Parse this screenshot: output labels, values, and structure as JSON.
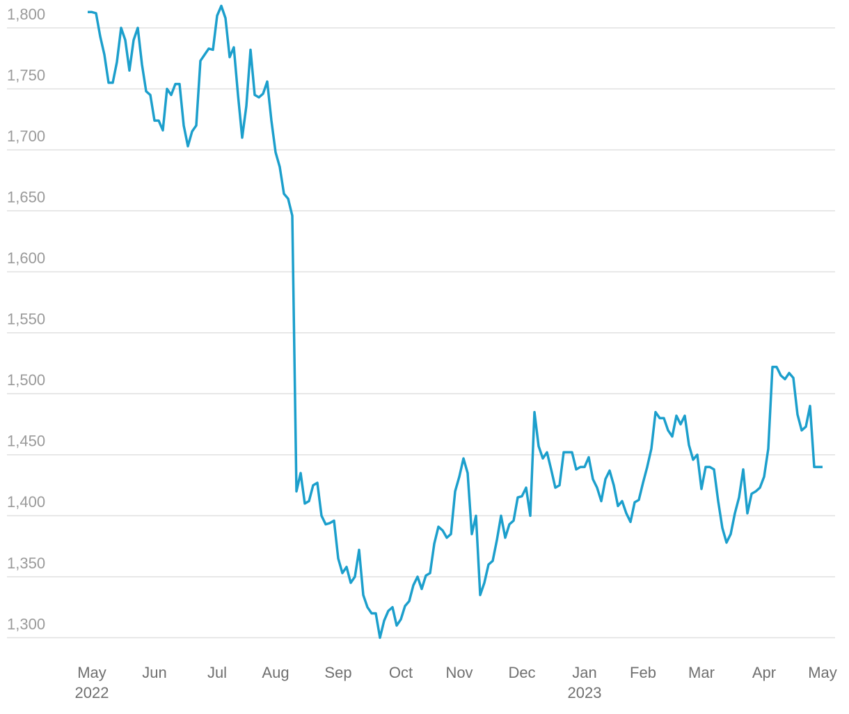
{
  "chart_data": {
    "type": "line",
    "color": "#1c9fcc",
    "grid": true,
    "ylim": [
      1290,
      1820
    ],
    "yticks": [
      {
        "value": 1300,
        "label": "1,300"
      },
      {
        "value": 1350,
        "label": "1,350"
      },
      {
        "value": 1400,
        "label": "1,400"
      },
      {
        "value": 1450,
        "label": "1,450"
      },
      {
        "value": 1500,
        "label": "1,500"
      },
      {
        "value": 1550,
        "label": "1,550"
      },
      {
        "value": 1600,
        "label": "1,600"
      },
      {
        "value": 1650,
        "label": "1,650"
      },
      {
        "value": 1700,
        "label": "1,700"
      },
      {
        "value": 1750,
        "label": "1,750"
      },
      {
        "value": 1800,
        "label": "1,800"
      }
    ],
    "categories": [
      null,
      "May",
      null,
      null,
      null,
      null,
      null,
      null,
      null,
      null,
      null,
      null,
      null,
      null,
      null,
      null,
      "Jun",
      null,
      null,
      null,
      null,
      null,
      null,
      null,
      null,
      null,
      null,
      null,
      null,
      null,
      null,
      "Jul",
      null,
      null,
      null,
      null,
      null,
      null,
      null,
      null,
      null,
      null,
      null,
      null,
      null,
      "Aug",
      null,
      null,
      null,
      null,
      null,
      null,
      null,
      null,
      null,
      null,
      null,
      null,
      null,
      null,
      "Sep",
      null,
      null,
      null,
      null,
      null,
      null,
      null,
      null,
      null,
      null,
      null,
      null,
      null,
      null,
      "Oct",
      null,
      null,
      null,
      null,
      null,
      null,
      null,
      null,
      null,
      null,
      null,
      null,
      null,
      "Nov",
      null,
      null,
      null,
      null,
      null,
      null,
      null,
      null,
      null,
      null,
      null,
      null,
      null,
      null,
      "Dec",
      null,
      null,
      null,
      null,
      null,
      null,
      null,
      null,
      null,
      null,
      null,
      null,
      null,
      null,
      "Jan",
      null,
      null,
      null,
      null,
      null,
      null,
      null,
      null,
      null,
      null,
      null,
      null,
      null,
      "Feb",
      null,
      null,
      null,
      null,
      null,
      null,
      null,
      null,
      null,
      null,
      null,
      null,
      null,
      "Mar",
      null,
      null,
      null,
      null,
      null,
      null,
      null,
      null,
      null,
      null,
      null,
      null,
      null,
      null,
      "Apr",
      null,
      null,
      null,
      null,
      null,
      null,
      null,
      null,
      null,
      null,
      null,
      null,
      null,
      "May"
    ],
    "category_years": [
      null,
      "2022",
      null,
      null,
      null,
      null,
      null,
      null,
      null,
      null,
      null,
      null,
      null,
      null,
      null,
      null,
      null,
      null,
      null,
      null,
      null,
      null,
      null,
      null,
      null,
      null,
      null,
      null,
      null,
      null,
      null,
      null,
      null,
      null,
      null,
      null,
      null,
      null,
      null,
      null,
      null,
      null,
      null,
      null,
      null,
      null,
      null,
      null,
      null,
      null,
      null,
      null,
      null,
      null,
      null,
      null,
      null,
      null,
      null,
      null,
      null,
      null,
      null,
      null,
      null,
      null,
      null,
      null,
      null,
      null,
      null,
      null,
      null,
      null,
      null,
      null,
      null,
      null,
      null,
      null,
      null,
      null,
      null,
      null,
      null,
      null,
      null,
      null,
      null,
      null,
      null,
      null,
      null,
      null,
      null,
      null,
      null,
      null,
      null,
      null,
      null,
      null,
      null,
      null,
      null,
      null,
      null,
      null,
      null,
      null,
      null,
      null,
      null,
      null,
      null,
      null,
      null,
      null,
      null,
      "2023",
      null,
      null,
      null,
      null,
      null,
      null,
      null,
      null,
      null,
      null,
      null,
      null,
      null,
      null,
      null,
      null,
      null,
      null,
      null,
      null,
      null,
      null,
      null,
      null,
      null,
      null,
      null,
      null,
      null,
      null,
      null,
      null,
      null,
      null,
      null,
      null,
      null,
      null,
      null,
      null,
      null,
      null,
      null,
      null,
      null,
      null,
      null,
      null,
      null,
      null,
      null,
      null,
      null,
      null,
      null,
      null,
      null
    ],
    "values": [
      1813,
      1813,
      1812,
      1793,
      1778,
      1755,
      1755,
      1772,
      1800,
      1790,
      1765,
      1790,
      1800,
      1770,
      1748,
      1745,
      1724,
      1724,
      1716,
      1750,
      1745,
      1754,
      1754,
      1720,
      1703,
      1715,
      1720,
      1773,
      1778,
      1783,
      1782,
      1810,
      1818,
      1808,
      1776,
      1784,
      1745,
      1710,
      1736,
      1782,
      1745,
      1743,
      1746,
      1756,
      1724,
      1698,
      1686,
      1664,
      1660,
      1646,
      1420,
      1435,
      1410,
      1412,
      1425,
      1427,
      1400,
      1393,
      1394,
      1396,
      1365,
      1353,
      1358,
      1345,
      1350,
      1372,
      1335,
      1325,
      1320,
      1320,
      1300,
      1314,
      1322,
      1325,
      1310,
      1315,
      1326,
      1330,
      1343,
      1350,
      1340,
      1351,
      1353,
      1377,
      1391,
      1388,
      1382,
      1385,
      1420,
      1432,
      1447,
      1435,
      1385,
      1400,
      1335,
      1345,
      1360,
      1363,
      1380,
      1400,
      1382,
      1393,
      1396,
      1415,
      1416,
      1423,
      1400,
      1485,
      1457,
      1447,
      1452,
      1438,
      1423,
      1425,
      1452,
      1452,
      1452,
      1438,
      1440,
      1440,
      1448,
      1430,
      1423,
      1412,
      1430,
      1437,
      1425,
      1408,
      1412,
      1402,
      1395,
      1411,
      1413,
      1427,
      1440,
      1455,
      1485,
      1480,
      1480,
      1470,
      1465,
      1482,
      1475,
      1482,
      1458,
      1446,
      1450,
      1422,
      1440,
      1440,
      1438,
      1412,
      1390,
      1378,
      1385,
      1402,
      1415,
      1438,
      1402,
      1418,
      1420,
      1423,
      1432,
      1455,
      1522,
      1522,
      1515,
      1512,
      1517,
      1513,
      1483,
      1470,
      1473,
      1490,
      1440,
      1440,
      1440
    ]
  }
}
